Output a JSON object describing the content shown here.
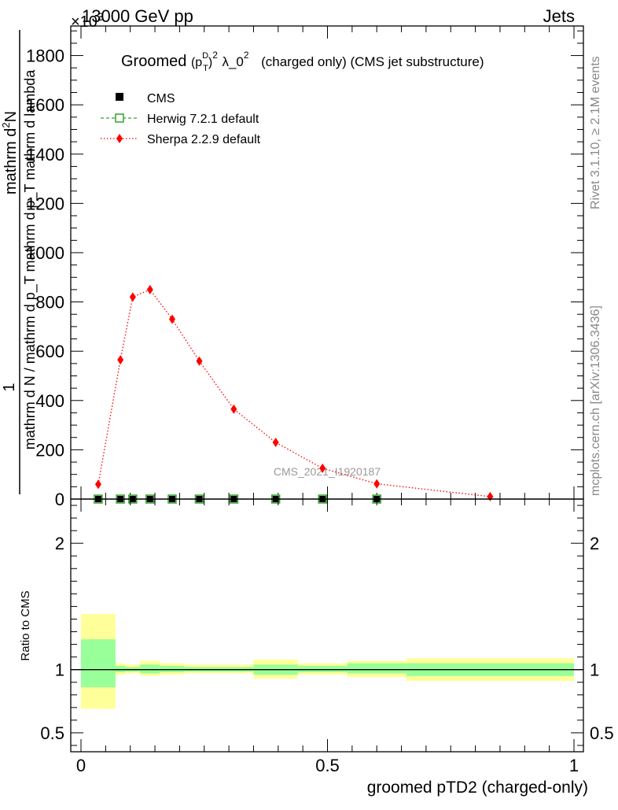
{
  "header": {
    "left_text": "13000 GeV pp",
    "right_text": "Jets",
    "exponent_text": "×10",
    "exponent_power": "3"
  },
  "side_labels": {
    "rivet": "Rivet 3.1.10, ≥ 2.1M events",
    "mcplots": "mcplots.cern.ch [arXiv:1306.3436]"
  },
  "chart_data": [
    {
      "type": "line",
      "title_parts": {
        "groomed": "Groomed",
        "p": "(p",
        "sub_T": "T",
        "sup_D": "D",
        "close": ")",
        "sup_2a": "2",
        "lambda": "λ_0",
        "sup_2b": "2",
        "rest": "(charged only) (CMS jet substructure)"
      },
      "ylabel_parts": {
        "one": "1",
        "denominator": "mathrm d N / mathrm d p_T mathrm d p_T mathrm d lambda",
        "numerator_a": "mathrm d",
        "numerator_sup": "2",
        "numerator_b": "N"
      },
      "xlim": [
        0,
        1
      ],
      "ylim": [
        0,
        1920
      ],
      "y_ticks": [
        0,
        200,
        400,
        600,
        800,
        1000,
        1200,
        1400,
        1600,
        1800
      ],
      "y_tick_labels": [
        "0",
        "200",
        "400",
        "600",
        "800",
        "1000",
        "1200",
        "1400",
        "1600",
        "1800"
      ],
      "watermark": "CMS_2021_I1920187",
      "legend": {
        "placement": "top-left",
        "entries": [
          {
            "label": "CMS",
            "color": "#000000",
            "marker": "square"
          },
          {
            "label": "Herwig 7.2.1 default",
            "color": "#33a02c",
            "marker": "open-square",
            "line": "dashed"
          },
          {
            "label": "Sherpa 2.2.9 default",
            "color": "#ff0000",
            "marker": "diamond",
            "line": "dotted"
          }
        ]
      },
      "series": [
        {
          "name": "CMS",
          "x": [
            0.035,
            0.08,
            0.105,
            0.14,
            0.185,
            0.24,
            0.31,
            0.395,
            0.49,
            0.6
          ],
          "values": [
            0,
            0,
            0,
            0,
            0,
            0,
            0,
            0,
            0,
            0
          ]
        },
        {
          "name": "Herwig 7.2.1 default",
          "x": [
            0.035,
            0.08,
            0.105,
            0.14,
            0.185,
            0.24,
            0.31,
            0.395,
            0.49,
            0.6
          ],
          "values": [
            0,
            0,
            0,
            0,
            0,
            0,
            0,
            0,
            0,
            0
          ]
        },
        {
          "name": "Sherpa 2.2.9 default",
          "x": [
            0.035,
            0.08,
            0.105,
            0.14,
            0.185,
            0.24,
            0.31,
            0.395,
            0.49,
            0.6,
            0.83
          ],
          "values": [
            60,
            565,
            820,
            850,
            730,
            560,
            365,
            230,
            125,
            62,
            10
          ]
        }
      ]
    },
    {
      "type": "area",
      "ylabel": "Ratio to CMS",
      "xlabel": "groomed pTD2 (charged-only)",
      "xlim": [
        0,
        1
      ],
      "ylim": [
        0.35,
        2.35
      ],
      "y_ticks": [
        0.5,
        1,
        2
      ],
      "y_tick_labels": [
        "0.5",
        "1",
        "2"
      ],
      "x_ticks": [
        0,
        0.5,
        1
      ],
      "x_tick_labels": [
        "0",
        "0.5",
        "1"
      ],
      "bands": [
        {
          "x0": 0.0,
          "x1": 0.07,
          "yellow": [
            0.69,
            1.44
          ],
          "green": [
            0.86,
            1.24
          ]
        },
        {
          "x0": 0.07,
          "x1": 0.09,
          "yellow": [
            0.96,
            1.05
          ],
          "green": [
            0.98,
            1.03
          ]
        },
        {
          "x0": 0.09,
          "x1": 0.12,
          "yellow": [
            0.97,
            1.04
          ],
          "green": [
            0.985,
            1.02
          ]
        },
        {
          "x0": 0.12,
          "x1": 0.16,
          "yellow": [
            0.95,
            1.07
          ],
          "green": [
            0.97,
            1.04
          ]
        },
        {
          "x0": 0.16,
          "x1": 0.21,
          "yellow": [
            0.96,
            1.05
          ],
          "green": [
            0.98,
            1.03
          ]
        },
        {
          "x0": 0.21,
          "x1": 0.35,
          "yellow": [
            0.97,
            1.04
          ],
          "green": [
            0.985,
            1.02
          ]
        },
        {
          "x0": 0.35,
          "x1": 0.44,
          "yellow": [
            0.93,
            1.08
          ],
          "green": [
            0.96,
            1.04
          ]
        },
        {
          "x0": 0.44,
          "x1": 0.54,
          "yellow": [
            0.96,
            1.05
          ],
          "green": [
            0.98,
            1.03
          ]
        },
        {
          "x0": 0.54,
          "x1": 0.66,
          "yellow": [
            0.94,
            1.07
          ],
          "green": [
            0.97,
            1.05
          ]
        },
        {
          "x0": 0.66,
          "x1": 1.0,
          "yellow": [
            0.91,
            1.09
          ],
          "green": [
            0.95,
            1.05
          ]
        }
      ],
      "colors": {
        "yellow": "#ffff99",
        "green": "#99ff99",
        "reference": "#000000"
      }
    }
  ]
}
